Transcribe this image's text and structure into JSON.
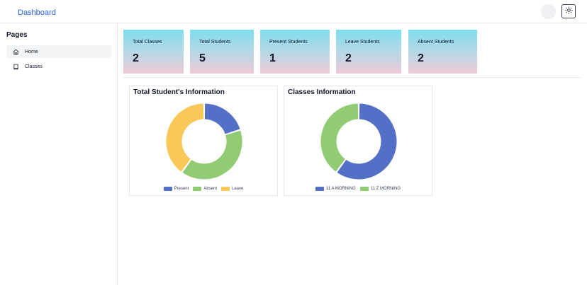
{
  "header": {
    "title": "Dashboard"
  },
  "sidebar": {
    "title": "Pages",
    "items": [
      {
        "label": "Home",
        "icon": "home-icon"
      },
      {
        "label": "Classes",
        "icon": "book-icon"
      }
    ]
  },
  "cards": [
    {
      "title": "Total Classes",
      "value": "2"
    },
    {
      "title": "Total Students",
      "value": "5"
    },
    {
      "title": "Present Students",
      "value": "1"
    },
    {
      "title": "Leave Students",
      "value": "2"
    },
    {
      "title": "Absent Students",
      "value": "2"
    }
  ],
  "colors": {
    "blue": "#5470c6",
    "green": "#91cc75",
    "yellow": "#fac858",
    "brand": "#2563eb"
  },
  "chart_data": [
    {
      "type": "pie",
      "title": "Total Student's Information",
      "donut": true,
      "legend_position": "bottom",
      "series": [
        {
          "name": "Present",
          "value": 1,
          "color": "#5470c6"
        },
        {
          "name": "Absent",
          "value": 2,
          "color": "#91cc75"
        },
        {
          "name": "Leave",
          "value": 2,
          "color": "#fac858"
        }
      ]
    },
    {
      "type": "pie",
      "title": "Classes Information",
      "donut": true,
      "legend_position": "bottom",
      "series": [
        {
          "name": "11 A MORNING",
          "value": 3,
          "color": "#5470c6"
        },
        {
          "name": "11 Z MORNING",
          "value": 2,
          "color": "#91cc75"
        }
      ]
    }
  ]
}
